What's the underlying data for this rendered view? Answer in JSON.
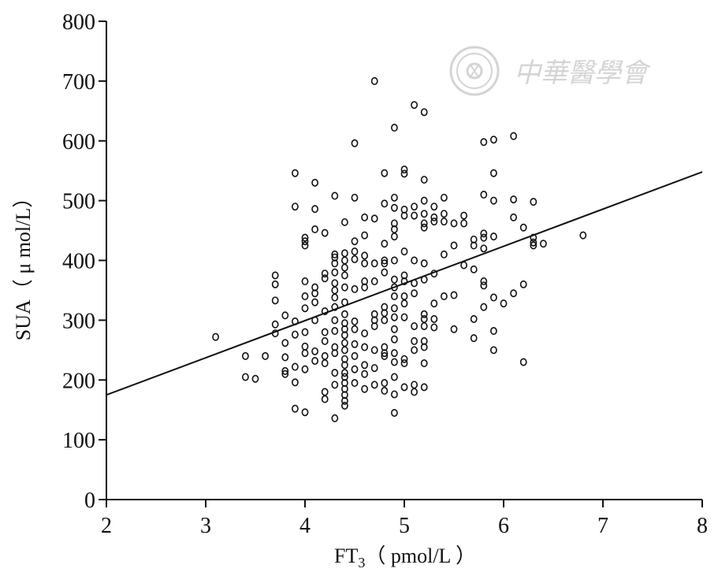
{
  "watermark": {
    "text": "中華醫學會"
  },
  "chart_data": {
    "type": "scatter",
    "xlabel": {
      "main": "FT",
      "sub": "3",
      "unit": "（ pmol/L ）"
    },
    "ylabel": "SUA（ μ mol/L）",
    "xlim": [
      2,
      8
    ],
    "ylim": [
      0,
      800
    ],
    "xticks": [
      2,
      3,
      4,
      5,
      6,
      7,
      8
    ],
    "yticks": [
      0,
      100,
      200,
      300,
      400,
      500,
      600,
      700,
      800
    ],
    "grid": false,
    "regression_line": {
      "x": [
        2,
        8
      ],
      "y": [
        175,
        548
      ]
    },
    "points": [
      [
        3.1,
        272
      ],
      [
        3.4,
        240
      ],
      [
        3.4,
        205
      ],
      [
        3.5,
        202
      ],
      [
        3.6,
        240
      ],
      [
        3.7,
        375
      ],
      [
        3.7,
        360
      ],
      [
        3.7,
        333
      ],
      [
        3.7,
        293
      ],
      [
        3.7,
        278
      ],
      [
        3.8,
        308
      ],
      [
        3.8,
        262
      ],
      [
        3.8,
        238
      ],
      [
        3.8,
        215
      ],
      [
        3.8,
        210
      ],
      [
        3.9,
        546
      ],
      [
        3.9,
        490
      ],
      [
        3.9,
        298
      ],
      [
        3.9,
        276
      ],
      [
        3.9,
        222
      ],
      [
        3.9,
        196
      ],
      [
        3.9,
        152
      ],
      [
        4.0,
        438
      ],
      [
        4.0,
        432
      ],
      [
        4.0,
        425
      ],
      [
        4.0,
        365
      ],
      [
        4.0,
        340
      ],
      [
        4.0,
        320
      ],
      [
        4.0,
        280
      ],
      [
        4.0,
        256
      ],
      [
        4.0,
        245
      ],
      [
        4.0,
        218
      ],
      [
        4.0,
        146
      ],
      [
        4.1,
        530
      ],
      [
        4.1,
        486
      ],
      [
        4.1,
        452
      ],
      [
        4.1,
        355
      ],
      [
        4.1,
        345
      ],
      [
        4.1,
        330
      ],
      [
        4.1,
        300
      ],
      [
        4.1,
        248
      ],
      [
        4.1,
        232
      ],
      [
        4.2,
        446
      ],
      [
        4.2,
        378
      ],
      [
        4.2,
        370
      ],
      [
        4.2,
        315
      ],
      [
        4.2,
        280
      ],
      [
        4.2,
        265
      ],
      [
        4.2,
        240
      ],
      [
        4.2,
        228
      ],
      [
        4.2,
        180
      ],
      [
        4.2,
        168
      ],
      [
        4.3,
        508
      ],
      [
        4.3,
        410
      ],
      [
        4.3,
        405
      ],
      [
        4.3,
        395
      ],
      [
        4.3,
        380
      ],
      [
        4.3,
        362
      ],
      [
        4.3,
        350
      ],
      [
        4.3,
        338
      ],
      [
        4.3,
        322
      ],
      [
        4.3,
        300
      ],
      [
        4.3,
        282
      ],
      [
        4.3,
        255
      ],
      [
        4.3,
        245
      ],
      [
        4.3,
        212
      ],
      [
        4.3,
        192
      ],
      [
        4.3,
        136
      ],
      [
        4.4,
        464
      ],
      [
        4.4,
        412
      ],
      [
        4.4,
        400
      ],
      [
        4.4,
        388
      ],
      [
        4.4,
        375
      ],
      [
        4.4,
        355
      ],
      [
        4.4,
        330
      ],
      [
        4.4,
        310
      ],
      [
        4.4,
        295
      ],
      [
        4.4,
        285
      ],
      [
        4.4,
        275
      ],
      [
        4.4,
        262
      ],
      [
        4.4,
        250
      ],
      [
        4.4,
        235
      ],
      [
        4.4,
        225
      ],
      [
        4.4,
        212
      ],
      [
        4.4,
        205
      ],
      [
        4.4,
        195
      ],
      [
        4.4,
        185
      ],
      [
        4.4,
        175
      ],
      [
        4.4,
        165
      ],
      [
        4.4,
        157
      ],
      [
        4.5,
        596
      ],
      [
        4.5,
        505
      ],
      [
        4.5,
        432
      ],
      [
        4.5,
        415
      ],
      [
        4.5,
        402
      ],
      [
        4.5,
        352
      ],
      [
        4.5,
        298
      ],
      [
        4.5,
        285
      ],
      [
        4.5,
        260
      ],
      [
        4.5,
        240
      ],
      [
        4.5,
        218
      ],
      [
        4.5,
        195
      ],
      [
        4.6,
        472
      ],
      [
        4.6,
        442
      ],
      [
        4.6,
        408
      ],
      [
        4.6,
        395
      ],
      [
        4.6,
        365
      ],
      [
        4.6,
        355
      ],
      [
        4.6,
        278
      ],
      [
        4.6,
        255
      ],
      [
        4.6,
        225
      ],
      [
        4.6,
        210
      ],
      [
        4.6,
        185
      ],
      [
        4.7,
        700
      ],
      [
        4.7,
        470
      ],
      [
        4.7,
        395
      ],
      [
        4.7,
        365
      ],
      [
        4.7,
        310
      ],
      [
        4.7,
        300
      ],
      [
        4.7,
        290
      ],
      [
        4.7,
        250
      ],
      [
        4.7,
        220
      ],
      [
        4.7,
        192
      ],
      [
        4.8,
        546
      ],
      [
        4.8,
        495
      ],
      [
        4.8,
        428
      ],
      [
        4.8,
        400
      ],
      [
        4.8,
        395
      ],
      [
        4.8,
        380
      ],
      [
        4.8,
        322
      ],
      [
        4.8,
        312
      ],
      [
        4.8,
        300
      ],
      [
        4.8,
        255
      ],
      [
        4.8,
        245
      ],
      [
        4.8,
        240
      ],
      [
        4.8,
        195
      ],
      [
        4.8,
        182
      ],
      [
        4.9,
        622
      ],
      [
        4.9,
        505
      ],
      [
        4.9,
        488
      ],
      [
        4.9,
        462
      ],
      [
        4.9,
        452
      ],
      [
        4.9,
        440
      ],
      [
        4.9,
        400
      ],
      [
        4.9,
        368
      ],
      [
        4.9,
        355
      ],
      [
        4.9,
        340
      ],
      [
        4.9,
        320
      ],
      [
        4.9,
        305
      ],
      [
        4.9,
        285
      ],
      [
        4.9,
        268
      ],
      [
        4.9,
        245
      ],
      [
        4.9,
        230
      ],
      [
        4.9,
        205
      ],
      [
        4.9,
        176
      ],
      [
        4.9,
        145
      ],
      [
        5.0,
        552
      ],
      [
        5.0,
        545
      ],
      [
        5.0,
        485
      ],
      [
        5.0,
        475
      ],
      [
        5.0,
        415
      ],
      [
        5.0,
        375
      ],
      [
        5.0,
        365
      ],
      [
        5.0,
        340
      ],
      [
        5.0,
        328
      ],
      [
        5.0,
        305
      ],
      [
        5.0,
        235
      ],
      [
        5.0,
        228
      ],
      [
        5.0,
        188
      ],
      [
        5.1,
        660
      ],
      [
        5.1,
        490
      ],
      [
        5.1,
        475
      ],
      [
        5.1,
        400
      ],
      [
        5.1,
        362
      ],
      [
        5.1,
        345
      ],
      [
        5.1,
        290
      ],
      [
        5.1,
        265
      ],
      [
        5.1,
        250
      ],
      [
        5.1,
        192
      ],
      [
        5.1,
        180
      ],
      [
        5.2,
        648
      ],
      [
        5.2,
        535
      ],
      [
        5.2,
        500
      ],
      [
        5.2,
        478
      ],
      [
        5.2,
        462
      ],
      [
        5.2,
        455
      ],
      [
        5.2,
        395
      ],
      [
        5.2,
        368
      ],
      [
        5.2,
        310
      ],
      [
        5.2,
        302
      ],
      [
        5.2,
        290
      ],
      [
        5.2,
        265
      ],
      [
        5.2,
        255
      ],
      [
        5.2,
        228
      ],
      [
        5.2,
        188
      ],
      [
        5.3,
        490
      ],
      [
        5.3,
        472
      ],
      [
        5.3,
        465
      ],
      [
        5.3,
        378
      ],
      [
        5.3,
        328
      ],
      [
        5.3,
        302
      ],
      [
        5.3,
        288
      ],
      [
        5.4,
        505
      ],
      [
        5.4,
        478
      ],
      [
        5.4,
        465
      ],
      [
        5.4,
        410
      ],
      [
        5.4,
        340
      ],
      [
        5.5,
        462
      ],
      [
        5.5,
        425
      ],
      [
        5.5,
        342
      ],
      [
        5.5,
        285
      ],
      [
        5.6,
        475
      ],
      [
        5.6,
        462
      ],
      [
        5.6,
        392
      ],
      [
        5.7,
        435
      ],
      [
        5.7,
        425
      ],
      [
        5.7,
        385
      ],
      [
        5.7,
        302
      ],
      [
        5.7,
        270
      ],
      [
        5.8,
        598
      ],
      [
        5.8,
        510
      ],
      [
        5.8,
        445
      ],
      [
        5.8,
        438
      ],
      [
        5.8,
        420
      ],
      [
        5.8,
        365
      ],
      [
        5.8,
        358
      ],
      [
        5.8,
        322
      ],
      [
        5.9,
        602
      ],
      [
        5.9,
        546
      ],
      [
        5.9,
        500
      ],
      [
        5.9,
        440
      ],
      [
        5.9,
        338
      ],
      [
        5.9,
        282
      ],
      [
        5.9,
        250
      ],
      [
        6.0,
        328
      ],
      [
        6.1,
        608
      ],
      [
        6.1,
        502
      ],
      [
        6.1,
        472
      ],
      [
        6.1,
        345
      ],
      [
        6.2,
        455
      ],
      [
        6.2,
        360
      ],
      [
        6.2,
        230
      ],
      [
        6.3,
        498
      ],
      [
        6.3,
        438
      ],
      [
        6.3,
        430
      ],
      [
        6.3,
        425
      ],
      [
        6.4,
        428
      ],
      [
        6.8,
        442
      ]
    ]
  }
}
